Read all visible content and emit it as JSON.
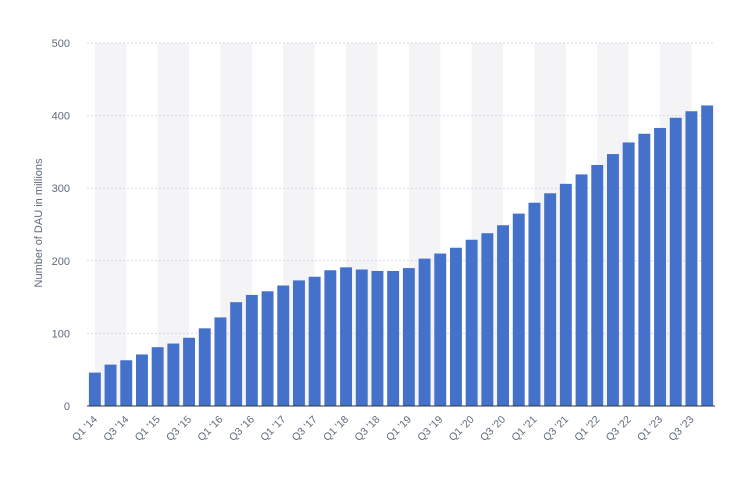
{
  "chart_data": {
    "type": "bar",
    "ylabel": "Number of DAU in millions",
    "xlabel": "",
    "ylim": [
      0,
      500
    ],
    "yticks": [
      0,
      100,
      200,
      300,
      400,
      500
    ],
    "grid": true,
    "categories": [
      "Q1 '14",
      "Q2 '14",
      "Q3 '14",
      "Q4 '14",
      "Q1 '15",
      "Q2 '15",
      "Q3 '15",
      "Q4 '15",
      "Q1 '16",
      "Q2 '16",
      "Q3 '16",
      "Q4 '16",
      "Q1 '17",
      "Q2 '17",
      "Q3 '17",
      "Q4 '17",
      "Q1 '18",
      "Q2 '18",
      "Q3 '18",
      "Q4 '18",
      "Q1 '19",
      "Q2 '19",
      "Q3 '19",
      "Q4 '19",
      "Q1 '20",
      "Q2 '20",
      "Q3 '20",
      "Q4 '20",
      "Q1 '21",
      "Q2 '21",
      "Q3 '21",
      "Q4 '21",
      "Q1 '22",
      "Q2 '22",
      "Q3 '22",
      "Q4 '22",
      "Q1 '23",
      "Q2 '23",
      "Q3 '23",
      "Q4 '23"
    ],
    "x_tick_labels": [
      "Q1 '14",
      "Q3 '14",
      "Q1 '15",
      "Q3 '15",
      "Q1 '16",
      "Q3 '16",
      "Q1 '17",
      "Q3 '17",
      "Q1 '18",
      "Q3 '18",
      "Q1 '19",
      "Q3 '19",
      "Q1 '20",
      "Q3 '20",
      "Q1 '21",
      "Q3 '21",
      "Q1 '22",
      "Q3 '22",
      "Q1 '23",
      "Q3 '23"
    ],
    "values": [
      46,
      57,
      63,
      71,
      81,
      86,
      94,
      107,
      122,
      143,
      153,
      158,
      166,
      173,
      178,
      187,
      191,
      188,
      186,
      186,
      190,
      203,
      210,
      218,
      229,
      238,
      249,
      265,
      280,
      293,
      306,
      319,
      332,
      347,
      363,
      375,
      383,
      397,
      406,
      414
    ],
    "colors": {
      "bar": "#4472ca",
      "band": "#f4f4f6",
      "grid": "#d5dae4",
      "axis": "#333333"
    }
  }
}
